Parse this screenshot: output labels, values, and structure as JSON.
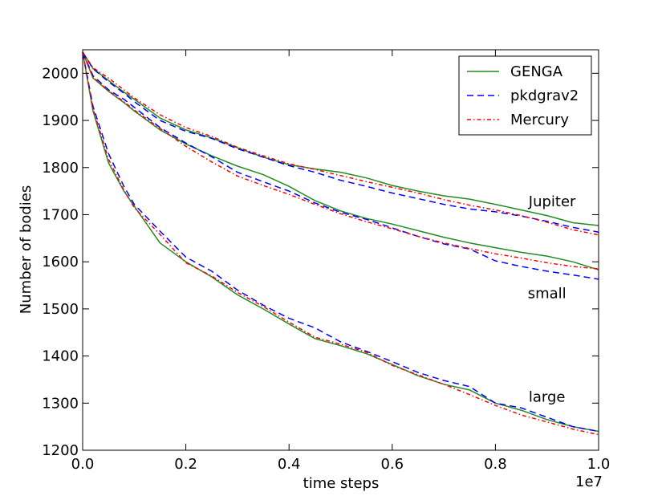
{
  "chart_data": {
    "type": "line",
    "title": "",
    "xlabel": "time steps",
    "ylabel": "Number of bodies",
    "x_offset_label": "1e7",
    "xlim": [
      0.0,
      1.0
    ],
    "ylim": [
      1200,
      2050
    ],
    "x_ticks": [
      0.0,
      0.2,
      0.4,
      0.6,
      0.8,
      1.0
    ],
    "x_tick_labels": [
      "0.0",
      "0.2",
      "0.4",
      "0.6",
      "0.8",
      "1.0"
    ],
    "y_ticks": [
      1200,
      1300,
      1400,
      1500,
      1600,
      1700,
      1800,
      1900,
      2000
    ],
    "y_tick_labels": [
      "1200",
      "1300",
      "1400",
      "1500",
      "1600",
      "1700",
      "1800",
      "1900",
      "2000"
    ],
    "grid": false,
    "legend_position": "top-right",
    "legend": [
      {
        "name": "GENGA",
        "color": "#228B22",
        "dash": "solid"
      },
      {
        "name": "pkdgrav2",
        "color": "#0000ff",
        "dash": "dashed"
      },
      {
        "name": "Mercury",
        "color": "#ff0000",
        "dash": "dashdot"
      }
    ],
    "annotations": [
      {
        "text": "Jupiter",
        "x": 0.91,
        "y": 1718
      },
      {
        "text": "small",
        "x": 0.9,
        "y": 1523
      },
      {
        "text": "large",
        "x": 0.9,
        "y": 1303
      }
    ],
    "x": [
      0.0,
      0.02,
      0.05,
      0.08,
      0.1,
      0.15,
      0.2,
      0.25,
      0.3,
      0.35,
      0.4,
      0.45,
      0.5,
      0.55,
      0.6,
      0.65,
      0.7,
      0.75,
      0.8,
      0.85,
      0.9,
      0.95,
      1.0
    ],
    "groups": [
      {
        "name": "Jupiter",
        "series": [
          {
            "name": "GENGA",
            "values": [
              2045,
              2010,
              1985,
              1960,
              1945,
              1905,
              1880,
              1863,
              1842,
              1822,
              1806,
              1797,
              1790,
              1778,
              1762,
              1750,
              1740,
              1733,
              1722,
              1710,
              1698,
              1683,
              1677
            ]
          },
          {
            "name": "pkdgrav2",
            "values": [
              2045,
              2010,
              1982,
              1958,
              1940,
              1900,
              1877,
              1862,
              1840,
              1822,
              1804,
              1790,
              1773,
              1760,
              1746,
              1734,
              1722,
              1712,
              1706,
              1697,
              1686,
              1673,
              1663
            ]
          },
          {
            "name": "Mercury",
            "values": [
              2045,
              2012,
              1990,
              1965,
              1948,
              1912,
              1885,
              1866,
              1843,
              1825,
              1808,
              1796,
              1783,
              1770,
              1758,
              1746,
              1732,
              1720,
              1710,
              1698,
              1684,
              1668,
              1657
            ]
          }
        ]
      },
      {
        "name": "small",
        "series": [
          {
            "name": "GENGA",
            "values": [
              2045,
              1990,
              1962,
              1938,
              1920,
              1880,
              1850,
              1825,
              1803,
              1785,
              1760,
              1730,
              1708,
              1692,
              1680,
              1666,
              1652,
              1640,
              1630,
              1620,
              1612,
              1600,
              1583
            ]
          },
          {
            "name": "pkdgrav2",
            "values": [
              2045,
              1995,
              1965,
              1945,
              1928,
              1885,
              1852,
              1823,
              1790,
              1770,
              1750,
              1725,
              1705,
              1690,
              1672,
              1654,
              1638,
              1627,
              1602,
              1590,
              1580,
              1572,
              1563
            ]
          },
          {
            "name": "Mercury",
            "values": [
              2045,
              1992,
              1963,
              1940,
              1922,
              1883,
              1845,
              1812,
              1782,
              1762,
              1743,
              1722,
              1702,
              1685,
              1670,
              1654,
              1640,
              1628,
              1617,
              1608,
              1598,
              1590,
              1585
            ]
          }
        ]
      },
      {
        "name": "large",
        "series": [
          {
            "name": "GENGA",
            "values": [
              2045,
              1920,
              1810,
              1750,
              1718,
              1640,
              1600,
              1568,
              1530,
              1500,
              1468,
              1437,
              1422,
              1405,
              1382,
              1358,
              1340,
              1328,
              1300,
              1285,
              1265,
              1250,
              1240
            ]
          },
          {
            "name": "pkdgrav2",
            "values": [
              2045,
              1930,
              1830,
              1760,
              1722,
              1665,
              1610,
              1580,
              1540,
              1508,
              1480,
              1460,
              1430,
              1410,
              1388,
              1365,
              1348,
              1335,
              1300,
              1290,
              1270,
              1250,
              1240
            ]
          },
          {
            "name": "Mercury",
            "values": [
              2045,
              1925,
              1818,
              1752,
              1715,
              1658,
              1598,
              1570,
              1535,
              1505,
              1472,
              1440,
              1425,
              1408,
              1380,
              1360,
              1340,
              1318,
              1295,
              1275,
              1260,
              1245,
              1233
            ]
          }
        ]
      }
    ]
  }
}
